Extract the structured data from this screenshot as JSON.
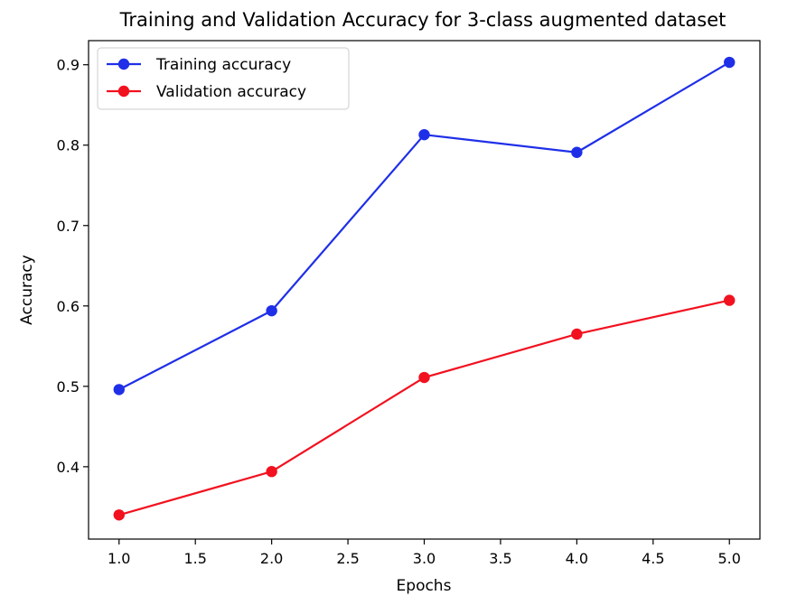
{
  "chart_data": {
    "type": "line",
    "title": "Training and Validation Accuracy for 3-class augmented dataset",
    "xlabel": "Epochs",
    "ylabel": "Accuracy",
    "xlim": [
      0.8,
      5.2
    ],
    "ylim": [
      0.31,
      0.93
    ],
    "xticks": [
      1.0,
      1.5,
      2.0,
      2.5,
      3.0,
      3.5,
      4.0,
      4.5,
      5.0
    ],
    "xtick_labels": [
      "1.0",
      "1.5",
      "2.0",
      "2.5",
      "3.0",
      "3.5",
      "4.0",
      "4.5",
      "5.0"
    ],
    "yticks": [
      0.4,
      0.5,
      0.6,
      0.7,
      0.8,
      0.9
    ],
    "ytick_labels": [
      "0.4",
      "0.5",
      "0.6",
      "0.7",
      "0.8",
      "0.9"
    ],
    "grid": false,
    "legend_position": "top-left",
    "x": [
      1,
      2,
      3,
      4,
      5
    ],
    "series": [
      {
        "name": "Training accuracy",
        "values": [
          0.496,
          0.594,
          0.813,
          0.791,
          0.903
        ],
        "color": "#1f2fe8",
        "marker": "circle"
      },
      {
        "name": "Validation accuracy",
        "values": [
          0.34,
          0.394,
          0.511,
          0.565,
          0.607
        ],
        "color": "#f2111f",
        "marker": "circle"
      }
    ]
  }
}
